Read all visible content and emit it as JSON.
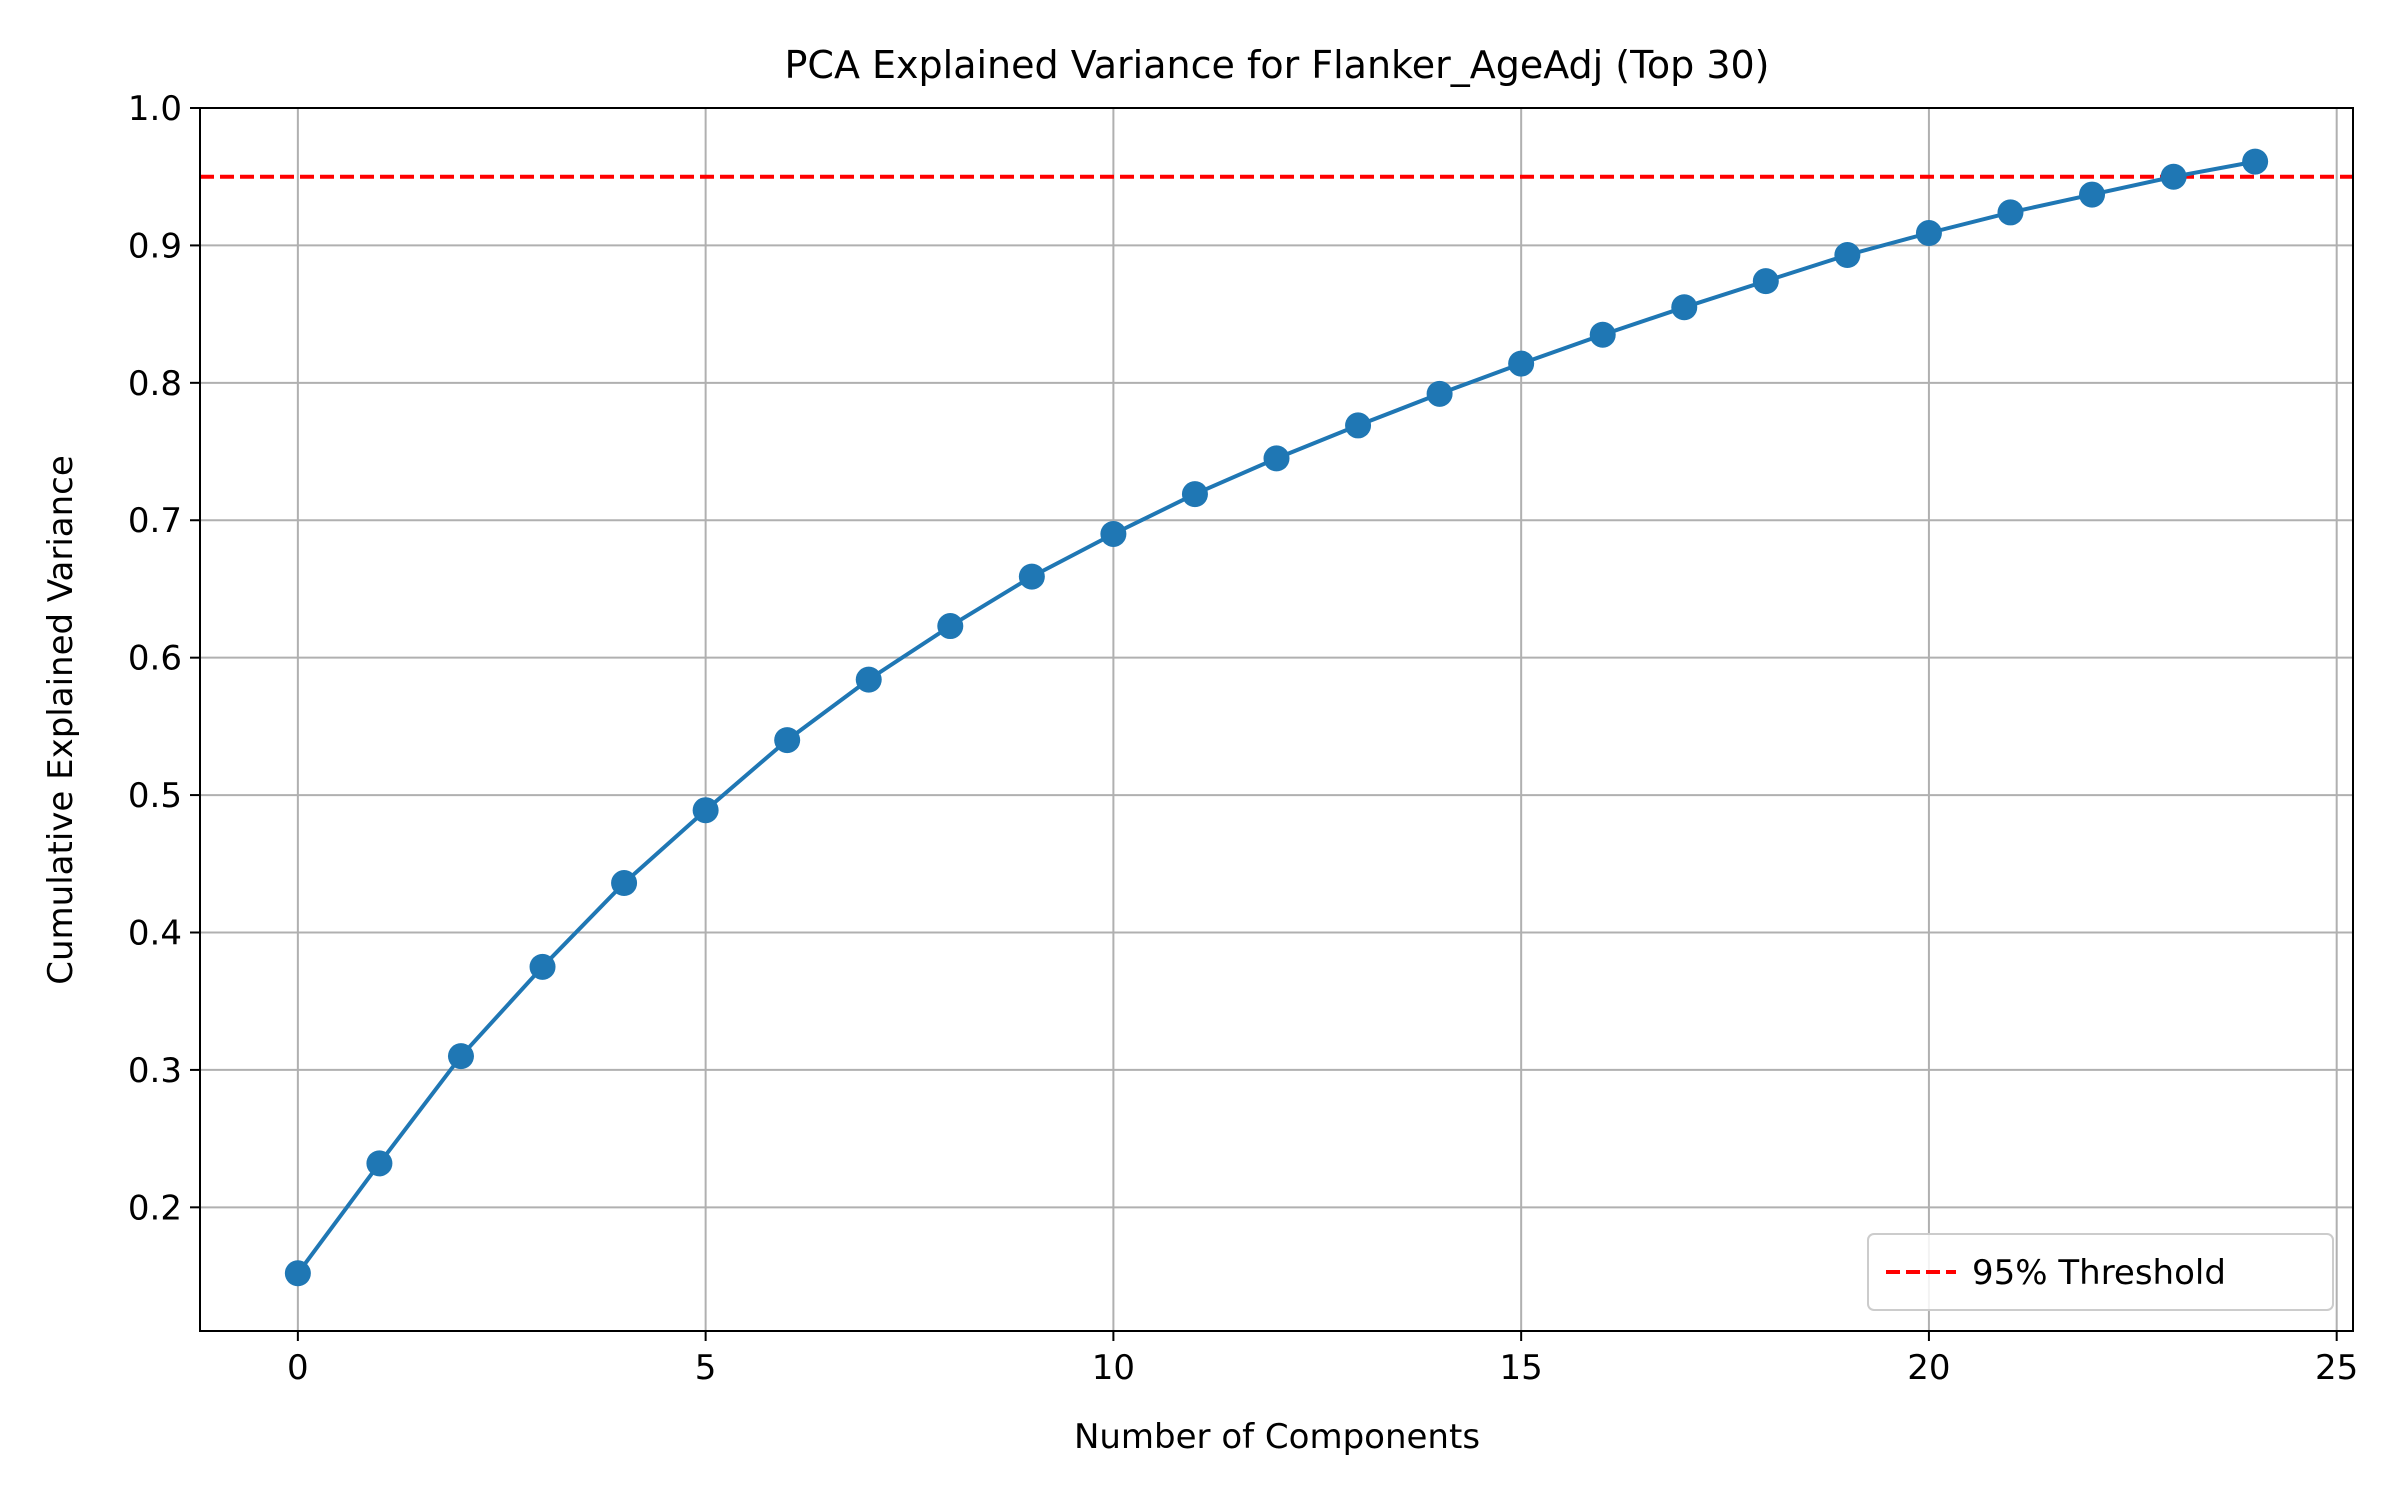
{
  "chart_data": {
    "type": "line",
    "title": "PCA Explained Variance for Flanker_AgeAdj (Top 30)",
    "xlabel": "Number of Components",
    "ylabel": "Cumulative Explained Variance",
    "x": [
      0,
      1,
      2,
      3,
      4,
      5,
      6,
      7,
      8,
      9,
      10,
      11,
      12,
      13,
      14,
      15,
      16,
      17,
      18,
      19,
      20,
      21,
      22,
      23,
      24
    ],
    "series": [
      {
        "values": [
          0.152,
          0.232,
          0.31,
          0.375,
          0.436,
          0.489,
          0.54,
          0.584,
          0.623,
          0.659,
          0.69,
          0.719,
          0.745,
          0.769,
          0.792,
          0.814,
          0.835,
          0.855,
          0.874,
          0.893,
          0.909,
          0.924,
          0.937,
          0.95,
          0.961
        ],
        "color": "#1f77b4",
        "marker": "circle"
      }
    ],
    "reference_lines": [
      {
        "name": "95% Threshold",
        "y": 0.95,
        "color": "#ff0000",
        "style": "dashed"
      }
    ],
    "xlim": [
      -1.2,
      25.2
    ],
    "ylim": [
      0.11,
      1.0
    ],
    "xticks": [
      0,
      5,
      10,
      15,
      20,
      25
    ],
    "yticks": [
      0.2,
      0.3,
      0.4,
      0.5,
      0.6,
      0.7,
      0.8,
      0.9,
      1.0
    ],
    "xtick_labels": [
      "0",
      "5",
      "10",
      "15",
      "20",
      "25"
    ],
    "ytick_labels": [
      "0.2",
      "0.3",
      "0.4",
      "0.5",
      "0.6",
      "0.7",
      "0.8",
      "0.9",
      "1.0"
    ],
    "grid": true,
    "legend": {
      "position": "bottom-right",
      "entries": [
        "95% Threshold"
      ]
    }
  }
}
